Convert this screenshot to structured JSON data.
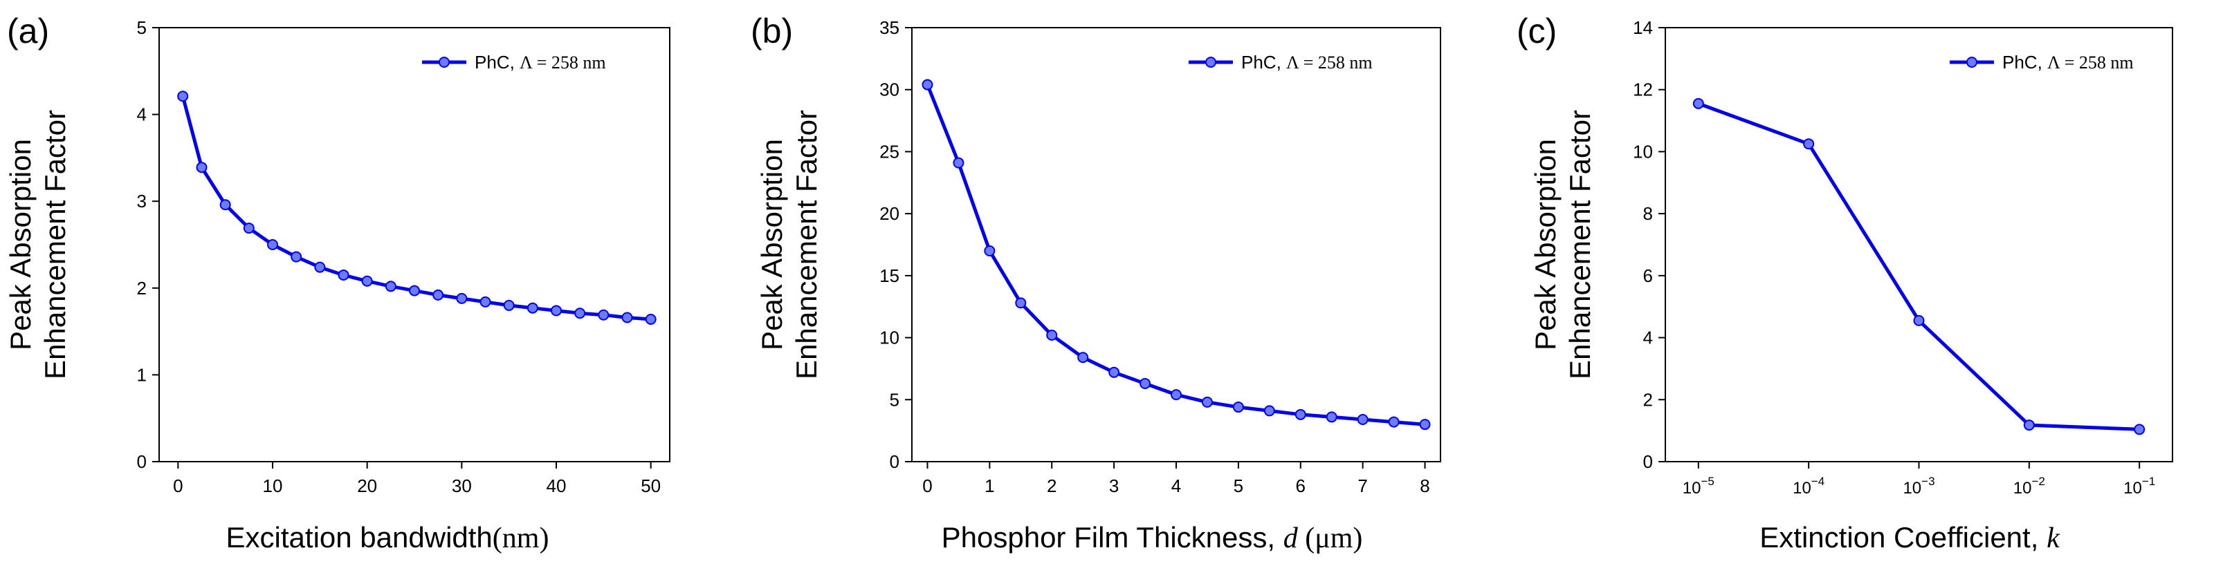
{
  "line_color": "#0000ee",
  "marker_fill": "#6c7cff",
  "chart_data": [
    {
      "type": "line",
      "panel_label": "(a)",
      "xlabel": "Excitation bandwidth",
      "xlabel_unit": "(nm)",
      "ylabel_line1": "Peak Absorption",
      "ylabel_line2": "Enhancement Factor",
      "legend_prefix": "PhC, ",
      "legend_symbol": "Λ",
      "legend_suffix": " = 258 nm",
      "legend_position": "top-right",
      "xscale": "linear",
      "xlim": [
        -2,
        52
      ],
      "ylim": [
        0,
        5
      ],
      "xticks": [
        0,
        10,
        20,
        30,
        40,
        50
      ],
      "xtick_labels": [
        "0",
        "10",
        "20",
        "30",
        "40",
        "50"
      ],
      "yticks": [
        0,
        1,
        2,
        3,
        4,
        5
      ],
      "ytick_labels": [
        "0",
        "1",
        "2",
        "3",
        "4",
        "5"
      ],
      "series": [
        {
          "name": "PhC, Λ = 258 nm",
          "x": [
            0.5,
            2.5,
            5,
            7.5,
            10,
            12.5,
            15,
            17.5,
            20,
            22.5,
            25,
            27.5,
            30,
            32.5,
            35,
            37.5,
            40,
            42.5,
            45,
            47.5,
            50
          ],
          "y": [
            4.21,
            3.39,
            2.96,
            2.69,
            2.5,
            2.36,
            2.24,
            2.15,
            2.08,
            2.02,
            1.97,
            1.92,
            1.88,
            1.84,
            1.8,
            1.77,
            1.74,
            1.71,
            1.69,
            1.66,
            1.64
          ]
        }
      ]
    },
    {
      "type": "line",
      "panel_label": "(b)",
      "xlabel": "Phosphor Film Thickness, ",
      "xlabel_var": "d",
      "xlabel_unit": " (μm)",
      "ylabel_line1": "Peak Absorption",
      "ylabel_line2": "Enhancement Factor",
      "legend_prefix": "PhC, ",
      "legend_symbol": "Λ",
      "legend_suffix": " = 258 nm",
      "legend_position": "top-right",
      "xscale": "linear",
      "xlim": [
        -0.25,
        8.25
      ],
      "ylim": [
        0,
        35
      ],
      "xticks": [
        0,
        1,
        2,
        3,
        4,
        5,
        6,
        7,
        8
      ],
      "xtick_labels": [
        "0",
        "1",
        "2",
        "3",
        "4",
        "5",
        "6",
        "7",
        "8"
      ],
      "yticks": [
        0,
        5,
        10,
        15,
        20,
        25,
        30,
        35
      ],
      "ytick_labels": [
        "0",
        "5",
        "10",
        "15",
        "20",
        "25",
        "30",
        "35"
      ],
      "series": [
        {
          "name": "PhC, Λ = 258 nm",
          "x": [
            0,
            0.5,
            1,
            1.5,
            2,
            2.5,
            3,
            3.5,
            4,
            4.5,
            5,
            5.5,
            6,
            6.5,
            7,
            7.5,
            8
          ],
          "y": [
            30.4,
            24.1,
            17.0,
            12.8,
            10.2,
            8.4,
            7.2,
            6.3,
            5.4,
            4.8,
            4.4,
            4.1,
            3.8,
            3.6,
            3.4,
            3.2,
            3.0
          ]
        }
      ]
    },
    {
      "type": "line",
      "panel_label": "(c)",
      "xlabel": "Extinction Coefficient, ",
      "xlabel_var": "k",
      "ylabel_line1": "Peak Absorption",
      "ylabel_line2": "Enhancement Factor",
      "legend_prefix": "PhC, ",
      "legend_symbol": "Λ",
      "legend_suffix": " = 258 nm",
      "legend_position": "top-right",
      "xscale": "log",
      "xlim": [
        -5.3,
        -0.7
      ],
      "ylim": [
        0,
        14
      ],
      "xticks": [
        -5,
        -4,
        -3,
        -2,
        -1
      ],
      "xtick_base": "10",
      "xtick_exponents": [
        "−5",
        "−4",
        "−3",
        "−2",
        "−1"
      ],
      "yticks": [
        0,
        2,
        4,
        6,
        8,
        10,
        12,
        14
      ],
      "ytick_labels": [
        "0",
        "2",
        "4",
        "6",
        "8",
        "10",
        "12",
        "14"
      ],
      "series": [
        {
          "name": "PhC, Λ = 258 nm",
          "x": [
            1e-05,
            0.0001,
            0.001,
            0.01,
            0.1
          ],
          "y": [
            11.55,
            10.25,
            4.55,
            1.18,
            1.04
          ]
        }
      ]
    }
  ]
}
